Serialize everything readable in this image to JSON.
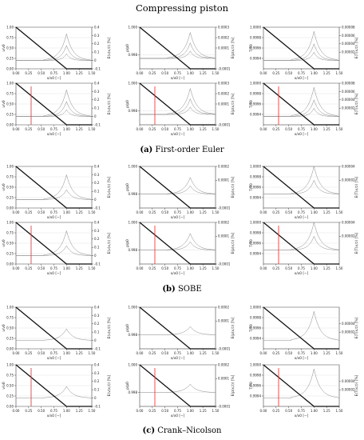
{
  "title": "Compressing piston",
  "captions": [
    {
      "letter": "(a)",
      "text": " First-order Euler"
    },
    {
      "letter": "(b)",
      "text": " SOBE"
    },
    {
      "letter": "(c)",
      "text": " Crank–Nicolson"
    }
  ],
  "colors": {
    "thick": "#111111",
    "thin": "#888888",
    "red": "#e8413c",
    "grid": "#cfcfcf"
  },
  "chart_data": [
    {
      "type": "line",
      "method": "First-order Euler",
      "quantity": "velocity",
      "xlabel": "x/x0 [−]",
      "ylabel": "v/v0",
      "ylabel_right": "E(v(x,t)) [%]",
      "xlim": [
        0.0,
        1.5
      ],
      "ylim": [
        0,
        1
      ],
      "ylim_right": [
        -0.1,
        0.4
      ],
      "xticks": [
        "0.00",
        "0.25",
        "0.50",
        "0.75",
        "1.00",
        "1.25",
        "1.50"
      ],
      "yticks": [
        "0.00",
        "0.25",
        "0.50",
        "0.75",
        "1.00"
      ],
      "yticks_right": [
        "-0.1",
        "0",
        "0.1",
        "0.2",
        "0.3",
        "0.4"
      ],
      "red_marker_x": null,
      "profile_x": [
        0.0,
        1.0,
        1.5
      ],
      "profile_y": [
        1.0,
        0.0,
        0.0
      ],
      "error_peak": [
        {
          "x": 1.0,
          "e": 0.32
        },
        {
          "x": 1.0,
          "e": 0.18
        },
        {
          "x": 1.0,
          "e": 0.08
        }
      ]
    },
    {
      "type": "line",
      "method": "First-order Euler",
      "quantity": "pressure",
      "xlabel": "x/x0 [−]",
      "ylabel": "p/p0",
      "ylabel_right": "E(p(x,t)) [%]",
      "xlim": [
        0.0,
        1.5
      ],
      "ylim": [
        0.997,
        1.0
      ],
      "ylim_right": [
        -0.0001,
        0.0003
      ],
      "xticks": [
        "0.00",
        "0.25",
        "0.50",
        "0.75",
        "1.00",
        "1.25",
        "1.50"
      ],
      "yticks": [
        "0.998",
        "1.000"
      ],
      "yticks_right": [
        "-0.0001",
        "0.0001",
        "0.0002",
        "0.0003"
      ],
      "red_marker_x": null,
      "profile_x": [
        0.0,
        1.0,
        1.5
      ],
      "profile_y": [
        1.0,
        0.997,
        0.997
      ],
      "error_peak": [
        {
          "x": 1.0,
          "e": 0.00025
        },
        {
          "x": 1.0,
          "e": 0.00015
        },
        {
          "x": 1.0,
          "e": 7e-05
        }
      ]
    },
    {
      "type": "line",
      "method": "First-order Euler",
      "quantity": "temperature",
      "xlabel": "x/x0 [−]",
      "ylabel": "T/T0",
      "ylabel_right": "E(T(x,t)) [%]",
      "xlim": [
        0.0,
        1.5
      ],
      "ylim": [
        0.9992,
        1.0
      ],
      "ylim_right": [
        -2e-05,
        8e-05
      ],
      "xticks": [
        "0.00",
        "0.25",
        "0.50",
        "0.75",
        "1.00",
        "1.25",
        "1.50"
      ],
      "yticks": [
        "0.9994",
        "0.9996",
        "0.9998",
        "1.0000"
      ],
      "yticks_right": [
        "0.00002",
        "0.00004",
        "0.00006",
        "0.00008"
      ],
      "red_marker_x": null,
      "profile_x": [
        0.0,
        1.0,
        1.5
      ],
      "profile_y": [
        1.0,
        0.9992,
        0.9992
      ],
      "error_peak": [
        {
          "x": 1.0,
          "e": 7e-05
        },
        {
          "x": 1.0,
          "e": 4e-05
        },
        {
          "x": 1.0,
          "e": 2e-05
        }
      ]
    },
    {
      "type": "line",
      "method": "First-order Euler",
      "quantity": "velocity",
      "xlabel": "x/x0 [−]",
      "ylabel": "v/v0",
      "ylabel_right": "E(v(x,t)) [%]",
      "xlim": [
        0.0,
        1.5
      ],
      "ylim": [
        0,
        1
      ],
      "ylim_right": [
        -0.1,
        0.4
      ],
      "xticks": [
        "0.00",
        "0.25",
        "0.50",
        "0.75",
        "1.00",
        "1.25",
        "1.50"
      ],
      "yticks": [
        "0.00",
        "0.25",
        "0.50",
        "0.75",
        "1.00"
      ],
      "yticks_right": [
        "-0.1",
        "0",
        "0.1",
        "0.2",
        "0.3",
        "0.4"
      ],
      "red_marker_x": 0.3,
      "profile_x": [
        0.0,
        1.0,
        1.5
      ],
      "profile_y": [
        1.0,
        0.0,
        0.0
      ],
      "error_peak": [
        {
          "x": 1.0,
          "e": 0.32
        },
        {
          "x": 1.0,
          "e": 0.18
        },
        {
          "x": 1.0,
          "e": 0.08
        }
      ]
    },
    {
      "type": "line",
      "method": "First-order Euler",
      "quantity": "pressure",
      "xlabel": "x/x0 [−]",
      "ylabel": "p/p0",
      "ylabel_right": "E(p(x,t)) [%]",
      "xlim": [
        0.0,
        1.5
      ],
      "ylim": [
        0.997,
        1.0
      ],
      "ylim_right": [
        -0.0001,
        0.0003
      ],
      "xticks": [
        "0.00",
        "0.25",
        "0.50",
        "0.75",
        "1.00",
        "1.25",
        "1.50"
      ],
      "yticks": [
        "0.998",
        "1.000"
      ],
      "yticks_right": [
        "-0.0001",
        "0.0001",
        "0.0002",
        "0.0003"
      ],
      "red_marker_x": 0.3,
      "profile_x": [
        0.0,
        1.0,
        1.5
      ],
      "profile_y": [
        1.0,
        0.997,
        0.997
      ],
      "error_peak": [
        {
          "x": 1.0,
          "e": 0.00025
        },
        {
          "x": 1.0,
          "e": 0.00015
        },
        {
          "x": 1.0,
          "e": 7e-05
        }
      ]
    },
    {
      "type": "line",
      "method": "First-order Euler",
      "quantity": "temperature",
      "xlabel": "x/x0 [−]",
      "ylabel": "T/T0",
      "ylabel_right": "E(T(x,t)) [%]",
      "xlim": [
        0.0,
        1.5
      ],
      "ylim": [
        0.9992,
        1.0
      ],
      "ylim_right": [
        -2e-05,
        8e-05
      ],
      "xticks": [
        "0.00",
        "0.25",
        "0.50",
        "0.75",
        "1.00",
        "1.25",
        "1.50"
      ],
      "yticks": [
        "0.9994",
        "0.9996",
        "0.9998",
        "1.0000"
      ],
      "yticks_right": [
        "0.00002",
        "0.00004",
        "0.00006",
        "0.00008"
      ],
      "red_marker_x": 0.3,
      "profile_x": [
        0.0,
        1.0,
        1.5
      ],
      "profile_y": [
        1.0,
        0.9992,
        0.9992
      ],
      "error_peak": [
        {
          "x": 1.0,
          "e": 7e-05
        },
        {
          "x": 1.0,
          "e": 4e-05
        },
        {
          "x": 1.0,
          "e": 2e-05
        }
      ]
    },
    {
      "type": "line",
      "method": "SOBE",
      "quantity": "velocity",
      "xlabel": "x/x0 [−]",
      "ylabel": "v/v0",
      "ylabel_right": "E(v(x,t)) [%]",
      "xlim": [
        0.0,
        1.5
      ],
      "ylim": [
        0,
        1
      ],
      "ylim_right": [
        -0.1,
        0.4
      ],
      "xticks": [
        "0.00",
        "0.25",
        "0.50",
        "0.75",
        "1.00",
        "1.25",
        "1.50"
      ],
      "yticks": [
        "0.00",
        "0.25",
        "0.50",
        "0.75",
        "1.00"
      ],
      "yticks_right": [
        "-0.1",
        "0",
        "0.1",
        "0.2",
        "0.3",
        "0.4"
      ],
      "red_marker_x": null,
      "profile_x": [
        0.0,
        1.0,
        1.5
      ],
      "profile_y": [
        1.0,
        0.0,
        0.0
      ],
      "error_peak": [
        {
          "x": 1.0,
          "e": 0.3
        },
        {
          "x": 1.0,
          "e": 0.12
        }
      ]
    },
    {
      "type": "line",
      "method": "SOBE",
      "quantity": "pressure",
      "xlabel": "x/x0 [−]",
      "ylabel": "p/p0",
      "ylabel_right": "E(p(x,t)) [%]",
      "xlim": [
        0.0,
        1.5
      ],
      "ylim": [
        0.997,
        1.0
      ],
      "ylim_right": [
        -0.0001,
        0.0002
      ],
      "xticks": [
        "0.00",
        "0.25",
        "0.50",
        "0.75",
        "1.00",
        "1.25",
        "1.50"
      ],
      "yticks": [
        "0.998",
        "1.000"
      ],
      "yticks_right": [
        "-0.0001",
        "0.0001",
        "0.0002"
      ],
      "red_marker_x": null,
      "profile_x": [
        0.0,
        1.0,
        1.5
      ],
      "profile_y": [
        1.0,
        0.997,
        0.997
      ],
      "error_peak": [
        {
          "x": 1.0,
          "e": 0.00012
        },
        {
          "x": 1.0,
          "e": 6e-05
        }
      ]
    },
    {
      "type": "line",
      "method": "SOBE",
      "quantity": "temperature",
      "xlabel": "x/x0 [−]",
      "ylabel": "T/T0",
      "ylabel_right": "E(T(x,t)) [%]",
      "xlim": [
        0.0,
        1.5
      ],
      "ylim": [
        0.9992,
        1.0
      ],
      "ylim_right": [
        -2e-05,
        4e-05
      ],
      "xticks": [
        "0.00",
        "0.25",
        "0.50",
        "0.75",
        "1.00",
        "1.25",
        "1.50"
      ],
      "yticks": [
        "0.9994",
        "0.9996",
        "0.9998",
        "1.0000"
      ],
      "yticks_right": [
        "0.00002",
        "0.00004"
      ],
      "red_marker_x": null,
      "profile_x": [
        0.0,
        1.0,
        1.5
      ],
      "profile_y": [
        1.0,
        0.9992,
        0.9992
      ],
      "error_peak": [
        {
          "x": 1.0,
          "e": 4e-05
        },
        {
          "x": 1.0,
          "e": 2e-05
        }
      ]
    },
    {
      "type": "line",
      "method": "SOBE",
      "quantity": "velocity",
      "xlabel": "x/x0 [−]",
      "ylabel": "v/v0",
      "ylabel_right": "E(v(x,t)) [%]",
      "xlim": [
        0.0,
        1.5
      ],
      "ylim": [
        0,
        1
      ],
      "ylim_right": [
        -0.1,
        0.4
      ],
      "xticks": [
        "0.00",
        "0.25",
        "0.50",
        "0.75",
        "1.00",
        "1.25",
        "1.50"
      ],
      "yticks": [
        "0.00",
        "0.25",
        "0.50",
        "0.75",
        "1.00"
      ],
      "yticks_right": [
        "-0.1",
        "0",
        "0.1",
        "0.2",
        "0.3",
        "0.4"
      ],
      "red_marker_x": 0.3,
      "profile_x": [
        0.0,
        1.0,
        1.5
      ],
      "profile_y": [
        1.0,
        0.0,
        0.0
      ],
      "error_peak": [
        {
          "x": 1.0,
          "e": 0.3
        },
        {
          "x": 1.0,
          "e": 0.12
        }
      ]
    },
    {
      "type": "line",
      "method": "SOBE",
      "quantity": "pressure",
      "xlabel": "x/x0 [−]",
      "ylabel": "p/p0",
      "ylabel_right": "E(p(x,t)) [%]",
      "xlim": [
        0.0,
        1.5
      ],
      "ylim": [
        0.997,
        1.0
      ],
      "ylim_right": [
        -0.0001,
        0.0002
      ],
      "xticks": [
        "0.00",
        "0.25",
        "0.50",
        "0.75",
        "1.00",
        "1.25",
        "1.50"
      ],
      "yticks": [
        "0.998",
        "1.000"
      ],
      "yticks_right": [
        "-0.0001",
        "0.0001",
        "0.0002"
      ],
      "red_marker_x": 0.3,
      "profile_x": [
        0.0,
        1.0,
        1.5
      ],
      "profile_y": [
        1.0,
        0.997,
        0.997
      ],
      "error_peak": [
        {
          "x": 1.0,
          "e": 0.00012
        },
        {
          "x": 1.0,
          "e": 6e-05
        }
      ]
    },
    {
      "type": "line",
      "method": "SOBE",
      "quantity": "temperature",
      "xlabel": "x/x0 [−]",
      "ylabel": "T/T0",
      "ylabel_right": "E(T(x,t)) [%]",
      "xlim": [
        0.0,
        1.5
      ],
      "ylim": [
        0.9992,
        1.0
      ],
      "ylim_right": [
        -2e-05,
        4e-05
      ],
      "xticks": [
        "0.00",
        "0.25",
        "0.50",
        "0.75",
        "1.00",
        "1.25",
        "1.50"
      ],
      "yticks": [
        "0.9994",
        "0.9996",
        "0.9998",
        "1.0000"
      ],
      "yticks_right": [
        "0.00002",
        "0.00004"
      ],
      "red_marker_x": 0.3,
      "profile_x": [
        0.0,
        1.0,
        1.5
      ],
      "profile_y": [
        1.0,
        0.9992,
        0.9992
      ],
      "error_peak": [
        {
          "x": 1.0,
          "e": 4e-05
        },
        {
          "x": 1.0,
          "e": 2e-05
        }
      ]
    },
    {
      "type": "line",
      "method": "Crank–Nicolson",
      "quantity": "velocity",
      "xlabel": "x/x0 [−]",
      "ylabel": "v/v0",
      "ylabel_right": "E(v(x,t)) [%]",
      "xlim": [
        0.0,
        1.5
      ],
      "ylim": [
        0,
        1
      ],
      "ylim_right": [
        -0.1,
        0.4
      ],
      "xticks": [
        "0.00",
        "0.25",
        "0.50",
        "0.75",
        "1.00",
        "1.25",
        "1.50"
      ],
      "yticks": [
        "0.00",
        "0.25",
        "0.50",
        "0.75",
        "1.00"
      ],
      "yticks_right": [
        "-0.1",
        "0",
        "0.1",
        "0.2",
        "0.3",
        "0.4"
      ],
      "red_marker_x": null,
      "profile_x": [
        0.0,
        1.0,
        1.5
      ],
      "profile_y": [
        1.0,
        0.0,
        0.0
      ],
      "error_peak": [
        {
          "x": 1.0,
          "e": 0.14
        }
      ]
    },
    {
      "type": "line",
      "method": "Crank–Nicolson",
      "quantity": "pressure",
      "xlabel": "x/x0 [−]",
      "ylabel": "p/p0",
      "ylabel_right": "E(p(x,t)) [%]",
      "xlim": [
        0.0,
        1.5
      ],
      "ylim": [
        0.997,
        1.0
      ],
      "ylim_right": [
        -0.0001,
        0.0002
      ],
      "xticks": [
        "0.00",
        "0.25",
        "0.50",
        "0.75",
        "1.00",
        "1.25",
        "1.50"
      ],
      "yticks": [
        "0.998",
        "1.000"
      ],
      "yticks_right": [
        "-0.0001",
        "0.0001",
        "0.0002"
      ],
      "red_marker_x": null,
      "profile_x": [
        0.0,
        1.0,
        1.5
      ],
      "profile_y": [
        1.0,
        0.997,
        0.997
      ],
      "error_peak": [
        {
          "x": 1.0,
          "e": 6e-05
        }
      ]
    },
    {
      "type": "line",
      "method": "Crank–Nicolson",
      "quantity": "temperature",
      "xlabel": "x/x0 [−]",
      "ylabel": "T/T0",
      "ylabel_right": "E(T(x,t)) [%]",
      "xlim": [
        0.0,
        1.5
      ],
      "ylim": [
        0.9992,
        1.0
      ],
      "ylim_right": [
        -2e-05,
        8e-05
      ],
      "xticks": [
        "0.00",
        "0.25",
        "0.50",
        "0.75",
        "1.00",
        "1.25",
        "1.50"
      ],
      "yticks": [
        "0.9994",
        "0.9996",
        "0.9998",
        "1.0000"
      ],
      "yticks_right": [
        "0.00002",
        "0.00004"
      ],
      "red_marker_x": null,
      "profile_x": [
        0.0,
        1.0,
        1.5
      ],
      "profile_y": [
        1.0,
        0.9992,
        0.9992
      ],
      "error_peak": [
        {
          "x": 1.0,
          "e": 7e-05
        }
      ]
    },
    {
      "type": "line",
      "method": "Crank–Nicolson",
      "quantity": "velocity",
      "xlabel": "x/x0 [−]",
      "ylabel": "v/v0",
      "ylabel_right": "E(v(x,t)) [%]",
      "xlim": [
        0.0,
        1.5
      ],
      "ylim": [
        0,
        1
      ],
      "ylim_right": [
        -0.1,
        0.4
      ],
      "xticks": [
        "0.00",
        "0.25",
        "0.50",
        "0.75",
        "1.00",
        "1.25",
        "1.50"
      ],
      "yticks": [
        "0.00",
        "0.25",
        "0.50",
        "0.75",
        "1.00"
      ],
      "yticks_right": [
        "-0.1",
        "0",
        "0.1",
        "0.2",
        "0.3",
        "0.4"
      ],
      "red_marker_x": 0.3,
      "profile_x": [
        0.0,
        1.0,
        1.5
      ],
      "profile_y": [
        1.0,
        0.0,
        0.0
      ],
      "error_peak": [
        {
          "x": 1.0,
          "e": 0.14
        }
      ]
    },
    {
      "type": "line",
      "method": "Crank–Nicolson",
      "quantity": "pressure",
      "xlabel": "x/x0 [−]",
      "ylabel": "p/p0",
      "ylabel_right": "E(p(x,t)) [%]",
      "xlim": [
        0.0,
        1.5
      ],
      "ylim": [
        0.997,
        1.0
      ],
      "ylim_right": [
        -0.0001,
        0.0002
      ],
      "xticks": [
        "0.00",
        "0.25",
        "0.50",
        "0.75",
        "1.00",
        "1.25",
        "1.50"
      ],
      "yticks": [
        "0.998",
        "1.000"
      ],
      "yticks_right": [
        "-0.0001",
        "0.0001",
        "0.0002"
      ],
      "red_marker_x": 0.3,
      "profile_x": [
        0.0,
        1.0,
        1.5
      ],
      "profile_y": [
        1.0,
        0.997,
        0.997
      ],
      "error_peak": [
        {
          "x": 1.0,
          "e": 6e-05
        }
      ]
    },
    {
      "type": "line",
      "method": "Crank–Nicolson",
      "quantity": "temperature",
      "xlabel": "x/x0 [−]",
      "ylabel": "T/T0",
      "ylabel_right": "E(T(x,t)) [%]",
      "xlim": [
        0.0,
        1.5
      ],
      "ylim": [
        0.9992,
        1.0
      ],
      "ylim_right": [
        -2e-05,
        8e-05
      ],
      "xticks": [
        "0.00",
        "0.25",
        "0.50",
        "0.75",
        "1.00",
        "1.25",
        "1.50"
      ],
      "yticks": [
        "0.9994",
        "0.9996",
        "0.9998",
        "1.0000"
      ],
      "yticks_right": [
        "0.00002",
        "0.00004"
      ],
      "red_marker_x": 0.3,
      "profile_x": [
        0.0,
        1.0,
        1.5
      ],
      "profile_y": [
        1.0,
        0.9992,
        0.9992
      ],
      "error_peak": [
        {
          "x": 1.0,
          "e": 7e-05
        }
      ]
    }
  ]
}
